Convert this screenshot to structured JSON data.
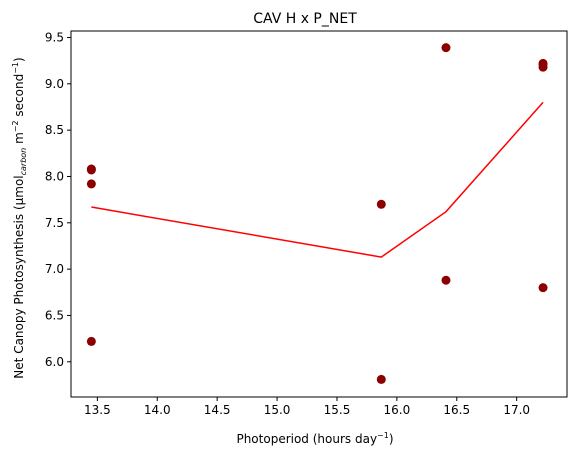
{
  "chart_data": {
    "type": "scatter",
    "title": "CAV H x P_NET",
    "xlabel": "Photoperiod (hours day",
    "xlabel_sup": "−1",
    "xlabel_end": ")",
    "ylabel_main": "Net Canopy Photosynthesis (μmol",
    "ylabel_sub": "carbon",
    "ylabel_mid": " m",
    "ylabel_sup1": "−2",
    "ylabel_mid2": " second",
    "ylabel_sup2": "−1",
    "ylabel_end": ")",
    "xlim": [
      13.28,
      17.42
    ],
    "ylim": [
      5.62,
      9.57
    ],
    "xticks": [
      13.5,
      14.0,
      14.5,
      15.0,
      15.5,
      16.0,
      16.5,
      17.0
    ],
    "xtick_labels": [
      "13.5",
      "14.0",
      "14.5",
      "15.0",
      "15.5",
      "16.0",
      "16.5",
      "17.0"
    ],
    "yticks": [
      6.0,
      6.5,
      7.0,
      7.5,
      8.0,
      8.5,
      9.0,
      9.5
    ],
    "ytick_labels": [
      "6.0",
      "6.5",
      "7.0",
      "7.5",
      "8.0",
      "8.5",
      "9.0",
      "9.5"
    ],
    "grid": false,
    "series": [
      {
        "kind": "scatter",
        "color": "#8b0000",
        "x": [
          13.45,
          13.45,
          13.45,
          13.45,
          15.87,
          15.87,
          16.41,
          16.41,
          17.22,
          17.22,
          17.22,
          17.22
        ],
        "y": [
          8.08,
          8.07,
          7.92,
          6.22,
          7.7,
          5.81,
          9.39,
          6.88,
          9.22,
          9.21,
          9.18,
          6.8
        ]
      },
      {
        "kind": "line",
        "color": "#ff0000",
        "x": [
          13.45,
          15.87,
          16.41,
          17.22
        ],
        "y": [
          7.67,
          7.13,
          7.62,
          8.8
        ]
      }
    ]
  }
}
